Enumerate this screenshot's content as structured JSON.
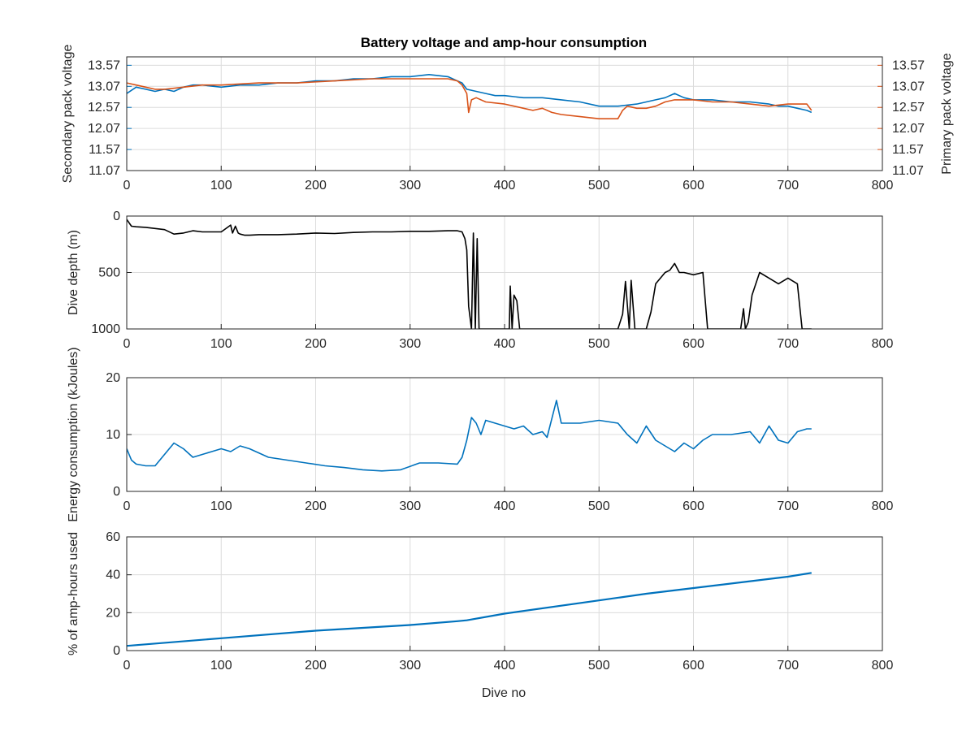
{
  "figure": {
    "title": "Battery voltage and amp-hour consumption",
    "xlabel": "Dive no"
  },
  "colors": {
    "secondary": "#0072BD",
    "primary": "#D95319",
    "depth": "#000000",
    "text": "#262626",
    "grid": "#dcdcdc"
  },
  "chart_data": [
    {
      "type": "line",
      "title": "Battery voltage and amp-hour consumption",
      "xlabel": "",
      "ylabel": "Secondary pack voltage",
      "ylabel_right": "Primary pack voltage",
      "xlim": [
        0,
        800
      ],
      "ylim": [
        11.07,
        13.77
      ],
      "x_ticks": [
        0,
        100,
        200,
        300,
        400,
        500,
        600,
        700,
        800
      ],
      "y_ticks": [
        11.07,
        11.57,
        12.07,
        12.57,
        13.07,
        13.57
      ],
      "y_ticks_right": [
        11.07,
        11.57,
        12.07,
        12.57,
        13.07,
        13.57
      ],
      "grid": true,
      "series": [
        {
          "name": "Secondary pack voltage",
          "axis": "left",
          "x": [
            0,
            10,
            20,
            30,
            40,
            50,
            60,
            70,
            80,
            100,
            120,
            140,
            160,
            180,
            200,
            220,
            240,
            260,
            280,
            300,
            320,
            340,
            350,
            355,
            360,
            370,
            380,
            390,
            400,
            420,
            440,
            460,
            480,
            500,
            520,
            540,
            550,
            560,
            570,
            580,
            590,
            600,
            620,
            640,
            660,
            680,
            690,
            700,
            710,
            720,
            725
          ],
          "y": [
            12.9,
            13.05,
            13.0,
            12.95,
            13.0,
            12.95,
            13.05,
            13.1,
            13.1,
            13.05,
            13.1,
            13.1,
            13.15,
            13.15,
            13.2,
            13.2,
            13.25,
            13.25,
            13.3,
            13.3,
            13.35,
            13.3,
            13.2,
            13.15,
            13.0,
            12.95,
            12.9,
            12.85,
            12.85,
            12.8,
            12.8,
            12.75,
            12.7,
            12.6,
            12.6,
            12.65,
            12.7,
            12.75,
            12.8,
            12.9,
            12.8,
            12.75,
            12.75,
            12.7,
            12.7,
            12.65,
            12.6,
            12.6,
            12.55,
            12.5,
            12.45
          ]
        },
        {
          "name": "Primary pack voltage",
          "axis": "right",
          "x": [
            0,
            10,
            20,
            30,
            40,
            60,
            80,
            100,
            140,
            180,
            220,
            260,
            300,
            340,
            350,
            355,
            360,
            362,
            365,
            370,
            380,
            400,
            410,
            420,
            430,
            440,
            450,
            460,
            480,
            500,
            520,
            525,
            530,
            540,
            550,
            560,
            570,
            580,
            600,
            620,
            640,
            660,
            680,
            700,
            720,
            725
          ],
          "y": [
            13.15,
            13.1,
            13.05,
            13.0,
            13.0,
            13.05,
            13.1,
            13.1,
            13.15,
            13.15,
            13.2,
            13.25,
            13.25,
            13.25,
            13.2,
            13.1,
            12.9,
            12.45,
            12.75,
            12.8,
            12.7,
            12.65,
            12.6,
            12.55,
            12.5,
            12.55,
            12.45,
            12.4,
            12.35,
            12.3,
            12.3,
            12.5,
            12.6,
            12.55,
            12.55,
            12.6,
            12.7,
            12.75,
            12.75,
            12.7,
            12.7,
            12.65,
            12.6,
            12.65,
            12.65,
            12.5
          ]
        }
      ]
    },
    {
      "type": "line",
      "title": "",
      "xlabel": "",
      "ylabel": "Dive depth (m)",
      "xlim": [
        0,
        800
      ],
      "ylim": [
        1000,
        0
      ],
      "y_reversed": true,
      "x_ticks": [
        0,
        100,
        200,
        300,
        400,
        500,
        600,
        700,
        800
      ],
      "y_ticks": [
        0,
        500,
        1000
      ],
      "grid": true,
      "series": [
        {
          "name": "Dive depth",
          "x": [
            0,
            5,
            10,
            20,
            30,
            40,
            50,
            60,
            70,
            80,
            100,
            110,
            112,
            115,
            118,
            120,
            125,
            130,
            140,
            160,
            180,
            200,
            220,
            240,
            260,
            280,
            300,
            320,
            340,
            350,
            355,
            358,
            360,
            362,
            365,
            367,
            369,
            371,
            373,
            376,
            400,
            405,
            406,
            408,
            410,
            413,
            416,
            420,
            440,
            460,
            480,
            500,
            520,
            525,
            528,
            532,
            534,
            538,
            550,
            555,
            560,
            570,
            575,
            580,
            585,
            590,
            600,
            610,
            615,
            620,
            640,
            650,
            653,
            655,
            658,
            662,
            670,
            680,
            690,
            700,
            710,
            715,
            720,
            725
          ],
          "y": [
            30,
            90,
            95,
            100,
            110,
            120,
            160,
            150,
            130,
            140,
            140,
            80,
            150,
            90,
            150,
            160,
            170,
            170,
            165,
            165,
            160,
            150,
            155,
            145,
            140,
            140,
            135,
            135,
            130,
            130,
            140,
            200,
            300,
            800,
            1000,
            150,
            1000,
            200,
            1000,
            1000,
            1000,
            1000,
            620,
            1000,
            700,
            750,
            1000,
            1000,
            1000,
            1000,
            1000,
            1000,
            1000,
            870,
            580,
            1000,
            570,
            1000,
            1000,
            850,
            600,
            500,
            480,
            420,
            500,
            500,
            520,
            500,
            1000,
            1000,
            1000,
            1000,
            820,
            1000,
            940,
            700,
            500,
            550,
            600,
            550,
            600,
            1000,
            1000,
            1000
          ]
        }
      ]
    },
    {
      "type": "line",
      "title": "",
      "xlabel": "",
      "ylabel": "Energy consumption (kJoules)",
      "xlim": [
        0,
        800
      ],
      "ylim": [
        0,
        20
      ],
      "x_ticks": [
        0,
        100,
        200,
        300,
        400,
        500,
        600,
        700,
        800
      ],
      "y_ticks": [
        0,
        10,
        20
      ],
      "grid": true,
      "series": [
        {
          "name": "Energy consumption",
          "x": [
            0,
            5,
            10,
            20,
            30,
            40,
            50,
            60,
            70,
            80,
            90,
            100,
            110,
            120,
            130,
            150,
            170,
            190,
            210,
            230,
            250,
            270,
            290,
            310,
            330,
            350,
            355,
            360,
            365,
            370,
            375,
            380,
            390,
            400,
            410,
            420,
            430,
            440,
            445,
            455,
            460,
            480,
            500,
            520,
            530,
            540,
            550,
            560,
            570,
            580,
            590,
            600,
            610,
            620,
            640,
            660,
            670,
            680,
            690,
            700,
            710,
            720,
            725
          ],
          "y": [
            7.5,
            5.5,
            4.8,
            4.5,
            4.5,
            6.5,
            8.5,
            7.5,
            6.0,
            6.5,
            7.0,
            7.5,
            7.0,
            8.0,
            7.5,
            6.0,
            5.5,
            5.0,
            4.5,
            4.2,
            3.8,
            3.6,
            3.8,
            5.0,
            5.0,
            4.8,
            6.0,
            9.0,
            13.0,
            12.0,
            10.0,
            12.5,
            12.0,
            11.5,
            11.0,
            11.5,
            10.0,
            10.5,
            9.5,
            16.0,
            12.0,
            12.0,
            12.5,
            12.0,
            10.0,
            8.5,
            11.5,
            9.0,
            8.0,
            7.0,
            8.5,
            7.5,
            9.0,
            10.0,
            10.0,
            10.5,
            8.5,
            11.5,
            9.0,
            8.5,
            10.5,
            11.0,
            11.0
          ]
        }
      ]
    },
    {
      "type": "line",
      "title": "",
      "xlabel": "Dive no",
      "ylabel": "% of amp-hours used",
      "xlim": [
        0,
        800
      ],
      "ylim": [
        0,
        60
      ],
      "x_ticks": [
        0,
        100,
        200,
        300,
        400,
        500,
        600,
        700,
        800
      ],
      "y_ticks": [
        0,
        20,
        40,
        60
      ],
      "grid": true,
      "series": [
        {
          "name": "% of amp-hours used",
          "x": [
            0,
            100,
            200,
            300,
            350,
            360,
            400,
            500,
            550,
            600,
            700,
            725
          ],
          "y": [
            2.5,
            6.5,
            10.5,
            13.5,
            15.5,
            16.0,
            19.5,
            26.5,
            30.0,
            33.0,
            39.0,
            41.0
          ]
        }
      ]
    }
  ]
}
